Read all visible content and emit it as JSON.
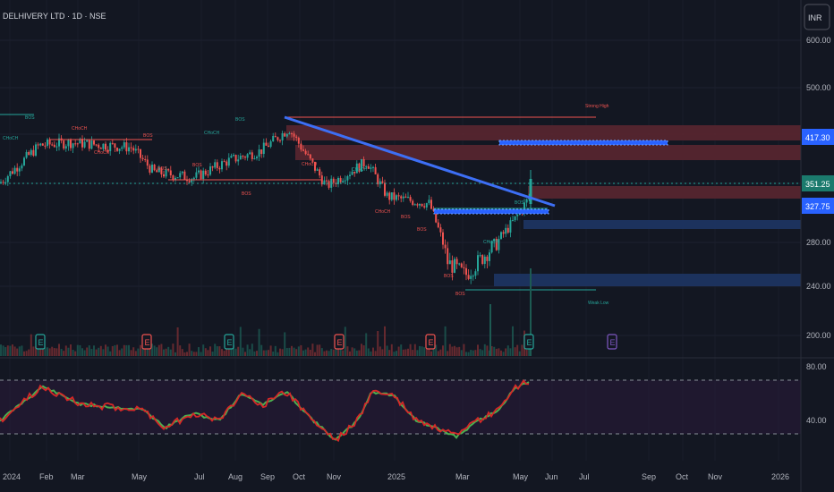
{
  "header": {
    "symbol": "DELHIVERY LTD · 1D · NSE",
    "currency": "INR"
  },
  "colors": {
    "background": "#131722",
    "grid": "#1e2230",
    "up": "#26a69a",
    "down": "#ef5350",
    "trendline": "#3d6ff5",
    "zone_red": "#6e2a30",
    "zone_blue": "#1e3564",
    "price_last": "#1b7a6d",
    "price_blue": "#2962ff",
    "rsi_line": "#d62828",
    "rsi_signal": "#4caf50"
  },
  "chart_data": {
    "type": "candlestick",
    "x_labels": [
      "2024",
      "Feb",
      "Mar",
      "May",
      "Jul",
      "Aug",
      "Sep",
      "Oct",
      "Nov",
      "2025",
      "Mar",
      "May",
      "Jun",
      "Jul",
      "Sep",
      "Oct",
      "Nov",
      "2026"
    ],
    "y_ticks": [
      600,
      500,
      280,
      240,
      200
    ],
    "y_range": [
      190,
      620
    ],
    "price_labels": [
      {
        "value": "417.30",
        "color": "blue"
      },
      {
        "value": "351.25",
        "color": "green"
      },
      {
        "value": "327.75",
        "color": "blue"
      }
    ],
    "close_path": [
      [
        "2024",
        365
      ],
      [
        "Feb",
        420
      ],
      [
        "Mar",
        425
      ],
      [
        "May",
        410
      ],
      [
        "May",
        380
      ],
      [
        "Jul",
        372
      ],
      [
        "Aug",
        395
      ],
      [
        "Sep",
        410
      ],
      [
        "Oct",
        445
      ],
      [
        "Nov",
        345
      ],
      [
        "Nov",
        390
      ],
      [
        "2025",
        345
      ],
      [
        "2025",
        330
      ],
      [
        "Mar",
        255
      ],
      [
        "Mar",
        248
      ],
      [
        "May",
        300
      ],
      [
        "May",
        312
      ],
      [
        "Jun",
        345
      ]
    ],
    "annotations": [
      "CHoCH",
      "BOS",
      "Strong High",
      "Weak Low"
    ],
    "volume_event_markers": [
      "E",
      "E",
      "E",
      "E",
      "E",
      "E",
      "E"
    ],
    "rsi": {
      "y_ticks": [
        80.0,
        40.0
      ],
      "upper_band": 70,
      "lower_band": 30,
      "last": 68
    }
  }
}
